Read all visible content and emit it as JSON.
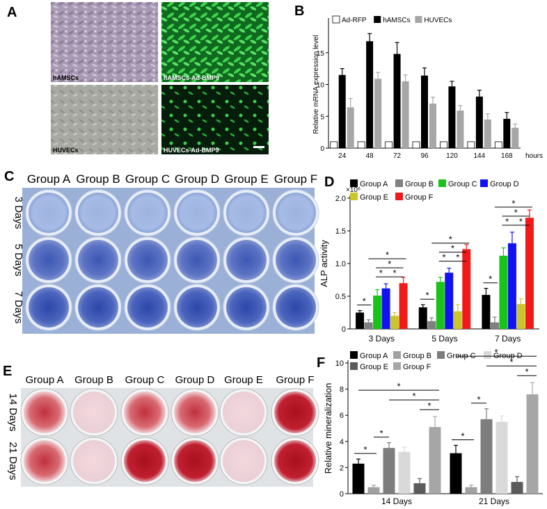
{
  "panels": {
    "A": {
      "label": "A",
      "images": [
        {
          "caption": "hAMSCs"
        },
        {
          "caption": "hAMSCs-Ad-BMP9"
        },
        {
          "caption": "HUVECs"
        },
        {
          "caption": "HUVECs-Ad-BMP9"
        }
      ]
    },
    "C": {
      "label": "C",
      "groups": [
        "Group A",
        "Group B",
        "Group C",
        "Group D",
        "Group E",
        "Group F"
      ],
      "rows": [
        "3 Days",
        "5 Days",
        "7 Days"
      ]
    },
    "E": {
      "label": "E",
      "groups": [
        "Group A",
        "Group B",
        "Group C",
        "Group D",
        "Group E",
        "Group F"
      ],
      "rows": [
        "14 Days",
        "21 Days"
      ]
    }
  },
  "chart_data": [
    {
      "panel": "B",
      "type": "bar",
      "ylabel": "Relative mRNA expression level",
      "x_unit": "hours",
      "categories": [
        "24",
        "48",
        "72",
        "96",
        "120",
        "144",
        "168"
      ],
      "ylim": [
        0,
        20
      ],
      "yticks": [
        "0",
        "5",
        "10",
        "15"
      ],
      "legend_position": "top",
      "series": [
        {
          "name": "Ad-RFP",
          "values": [
            1,
            1,
            1,
            1,
            1,
            1,
            1
          ],
          "errors": [
            0,
            0,
            0,
            0,
            0,
            0,
            0
          ],
          "color": "#ffffff"
        },
        {
          "name": "hAMSCs",
          "values": [
            11.5,
            16.8,
            14.8,
            11.4,
            9.7,
            8.1,
            4.6
          ],
          "errors": [
            1.0,
            1.2,
            1.8,
            1.2,
            0.8,
            1.0,
            1.0
          ],
          "color": "#000000"
        },
        {
          "name": "HUVECs",
          "values": [
            6.4,
            10.9,
            10.5,
            7.0,
            5.9,
            4.5,
            3.2
          ],
          "errors": [
            1.4,
            1.0,
            1.0,
            1.0,
            0.8,
            0.9,
            0.6
          ],
          "color": "#a6a6a6"
        }
      ]
    },
    {
      "panel": "D",
      "type": "bar",
      "ylabel": "ALP activity",
      "y_multiplier": "×10⁶",
      "categories": [
        "3 Days",
        "5 Days",
        "7 Days"
      ],
      "ylim": [
        0,
        2.0
      ],
      "yticks": [
        "0",
        "0.5",
        "1.0",
        "1.5",
        "2.0"
      ],
      "legend_position": "top",
      "series": [
        {
          "name": "Group A",
          "values": [
            0.25,
            0.33,
            0.52
          ],
          "errors": [
            0.03,
            0.04,
            0.1
          ],
          "color": "#000000"
        },
        {
          "name": "Group B",
          "values": [
            0.1,
            0.12,
            0.1
          ],
          "errors": [
            0.04,
            0.05,
            0.08
          ],
          "color": "#808080"
        },
        {
          "name": "Group C",
          "values": [
            0.51,
            0.72,
            1.12
          ],
          "errors": [
            0.09,
            0.07,
            0.12
          ],
          "color": "#19c319"
        },
        {
          "name": "Group D",
          "values": [
            0.62,
            0.86,
            1.31
          ],
          "errors": [
            0.07,
            0.07,
            0.17
          ],
          "color": "#1212f2"
        },
        {
          "name": "Group E",
          "values": [
            0.2,
            0.27,
            0.38
          ],
          "errors": [
            0.05,
            0.1,
            0.08
          ],
          "color": "#c9c62c"
        },
        {
          "name": "Group F",
          "values": [
            0.7,
            1.22,
            1.7
          ],
          "errors": [
            0.09,
            0.07,
            0.12
          ],
          "color": "#f01a1a"
        }
      ],
      "significance_marker": "*"
    },
    {
      "panel": "F",
      "type": "bar",
      "ylabel": "Relative mineralization",
      "categories": [
        "14 Days",
        "21 Days"
      ],
      "ylim": [
        0,
        10
      ],
      "yticks": [
        "0",
        "2",
        "4",
        "6",
        "8",
        "10"
      ],
      "legend_position": "top",
      "series": [
        {
          "name": "Group A",
          "values": [
            2.3,
            3.1
          ],
          "errors": [
            0.35,
            0.6
          ],
          "color": "#000000"
        },
        {
          "name": "Group B",
          "values": [
            0.5,
            0.5
          ],
          "errors": [
            0.15,
            0.15
          ],
          "color": "#a0a0a0"
        },
        {
          "name": "Group C",
          "values": [
            3.5,
            5.7
          ],
          "errors": [
            0.4,
            0.8
          ],
          "color": "#7d7d7d"
        },
        {
          "name": "Group D",
          "values": [
            3.2,
            5.5
          ],
          "errors": [
            0.35,
            0.45
          ],
          "color": "#d9d9d9"
        },
        {
          "name": "Group E",
          "values": [
            0.8,
            0.9
          ],
          "errors": [
            0.35,
            0.4
          ],
          "color": "#5b5b5b"
        },
        {
          "name": "Group F",
          "values": [
            5.1,
            7.6
          ],
          "errors": [
            0.8,
            0.9
          ],
          "color": "#a6a6a6"
        }
      ],
      "significance_marker": "*"
    }
  ]
}
